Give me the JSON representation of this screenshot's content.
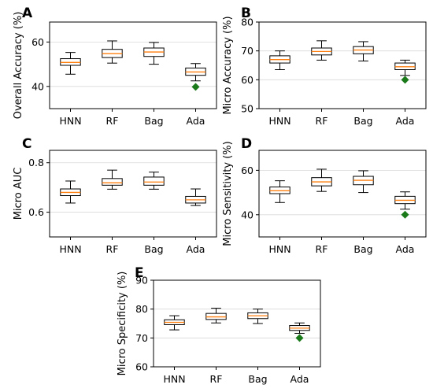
{
  "chart_data": [
    {
      "type": "box",
      "panel": "A",
      "ylabel": "Overall Accuracy (%)",
      "categories": [
        "HNN",
        "RF",
        "Bag",
        "Ada"
      ],
      "yticks": [
        40,
        60
      ],
      "ylim": [
        30,
        69
      ],
      "grid": "horizontal",
      "boxes": [
        {
          "whisker_low": 45.5,
          "q1": 49.5,
          "median": 50.8,
          "q3": 52.5,
          "whisker_high": 55.3
        },
        {
          "whisker_low": 50.5,
          "q1": 53.0,
          "median": 54.8,
          "q3": 56.7,
          "whisker_high": 60.5
        },
        {
          "whisker_low": 50.0,
          "q1": 53.5,
          "median": 55.5,
          "q3": 57.3,
          "whisker_high": 59.8
        },
        {
          "whisker_low": 42.5,
          "q1": 45.0,
          "median": 46.5,
          "q3": 48.3,
          "whisker_high": 50.3
        }
      ],
      "outliers": [
        {
          "category": "Ada",
          "value": 39.8
        }
      ]
    },
    {
      "type": "box",
      "panel": "B",
      "ylabel": "Micro Accuracy (%)",
      "categories": [
        "HNN",
        "RF",
        "Bag",
        "Ada"
      ],
      "yticks": [
        50,
        60,
        70,
        80
      ],
      "ylim": [
        50,
        80
      ],
      "grid": "horizontal",
      "boxes": [
        {
          "whisker_low": 63.5,
          "q1": 65.8,
          "median": 67.0,
          "q3": 68.3,
          "whisker_high": 70.0
        },
        {
          "whisker_low": 66.8,
          "q1": 68.6,
          "median": 69.8,
          "q3": 71.0,
          "whisker_high": 73.5
        },
        {
          "whisker_low": 66.5,
          "q1": 69.0,
          "median": 70.3,
          "q3": 71.5,
          "whisker_high": 73.2
        },
        {
          "whisker_low": 61.5,
          "q1": 63.5,
          "median": 64.5,
          "q3": 65.8,
          "whisker_high": 66.8
        }
      ],
      "outliers": [
        {
          "category": "Ada",
          "value": 60.0
        }
      ]
    },
    {
      "type": "box",
      "panel": "C",
      "ylabel": "Micro AUC",
      "categories": [
        "HNN",
        "RF",
        "Bag",
        "Ada"
      ],
      "yticks": [
        0.6,
        0.8
      ],
      "yticklabels": [
        "0.6",
        "0.8"
      ],
      "ylim": [
        0.5,
        0.85
      ],
      "grid": "horizontal",
      "boxes": [
        {
          "whisker_low": 0.637,
          "q1": 0.667,
          "median": 0.68,
          "q3": 0.694,
          "whisker_high": 0.726
        },
        {
          "whisker_low": 0.693,
          "q1": 0.709,
          "median": 0.719,
          "q3": 0.736,
          "whisker_high": 0.77
        },
        {
          "whisker_low": 0.693,
          "q1": 0.709,
          "median": 0.722,
          "q3": 0.742,
          "whisker_high": 0.762
        },
        {
          "whisker_low": 0.627,
          "q1": 0.637,
          "median": 0.65,
          "q3": 0.664,
          "whisker_high": 0.694
        }
      ],
      "outliers": []
    },
    {
      "type": "box",
      "panel": "D",
      "ylabel": "Micro Sensitivity (%)",
      "categories": [
        "HNN",
        "RF",
        "Bag",
        "Ada"
      ],
      "yticks": [
        40,
        60
      ],
      "ylim": [
        30,
        69
      ],
      "grid": "horizontal",
      "boxes": [
        {
          "whisker_low": 45.5,
          "q1": 49.5,
          "median": 50.8,
          "q3": 52.5,
          "whisker_high": 55.3
        },
        {
          "whisker_low": 50.5,
          "q1": 53.0,
          "median": 54.8,
          "q3": 56.7,
          "whisker_high": 60.5
        },
        {
          "whisker_low": 50.0,
          "q1": 53.5,
          "median": 55.5,
          "q3": 57.3,
          "whisker_high": 59.8
        },
        {
          "whisker_low": 42.5,
          "q1": 45.0,
          "median": 46.5,
          "q3": 48.3,
          "whisker_high": 50.3
        }
      ],
      "outliers": [
        {
          "category": "Ada",
          "value": 40.0
        }
      ]
    },
    {
      "type": "box",
      "panel": "E",
      "ylabel": "Micro Specificity (%)",
      "categories": [
        "HNN",
        "RF",
        "Bag",
        "Ada"
      ],
      "yticks": [
        60,
        70,
        80,
        90
      ],
      "ylim": [
        60,
        90
      ],
      "grid": "horizontal",
      "boxes": [
        {
          "whisker_low": 72.8,
          "q1": 74.6,
          "median": 75.4,
          "q3": 76.3,
          "whisker_high": 77.7
        },
        {
          "whisker_low": 75.2,
          "q1": 76.4,
          "median": 77.3,
          "q3": 78.5,
          "whisker_high": 80.3
        },
        {
          "whisker_low": 75.0,
          "q1": 76.7,
          "median": 77.7,
          "q3": 78.7,
          "whisker_high": 80.0
        },
        {
          "whisker_low": 71.6,
          "q1": 72.6,
          "median": 73.4,
          "q3": 74.3,
          "whisker_high": 75.2
        }
      ],
      "outliers": [
        {
          "category": "Ada",
          "value": 70.0
        }
      ]
    }
  ],
  "style": {
    "box_fill": "#ffffff",
    "box_edge": "#000000",
    "median_color": "#ff7f0e",
    "outlier_color": "#1a7a1a",
    "grid_color": "#d9d9d9"
  }
}
